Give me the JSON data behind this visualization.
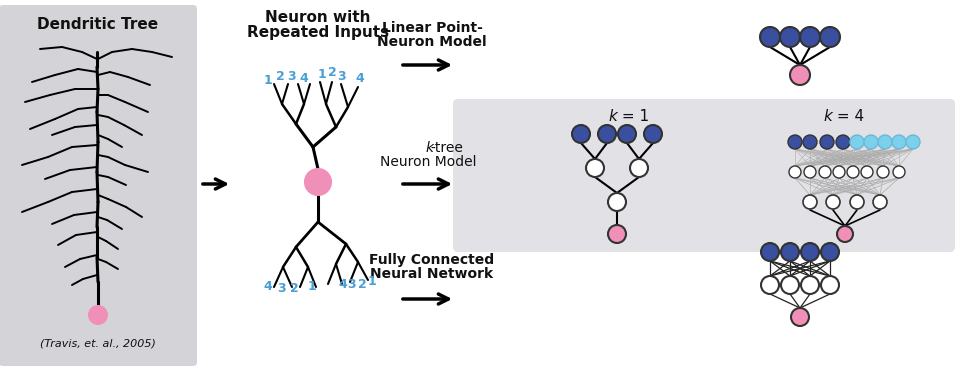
{
  "bg_color": "#ffffff",
  "panel1_bg": "#d4d4d8",
  "panel2_bg": "#e2e2e6",
  "dark_blue": "#3a4fa0",
  "light_blue": "#7dd0ec",
  "pink": "#f090b8",
  "white_node": "#ffffff",
  "node_edge": "#333333",
  "text_color": "#111111",
  "title1": "Dendritic Tree",
  "title2": "Neuron with\nRepeated Inputs",
  "label1": "Linear Point-\nNeuron Model",
  "label2_italic": "k",
  "label2_rest": "-tree\nNeuron Model",
  "label3": "Fully Connected\nNeural Network",
  "citation": "(Travis, et. al., 2005)",
  "k1_label_i": "k",
  "k1_label_r": " = 1",
  "k4_label_i": "k",
  "k4_label_r": " = 4"
}
